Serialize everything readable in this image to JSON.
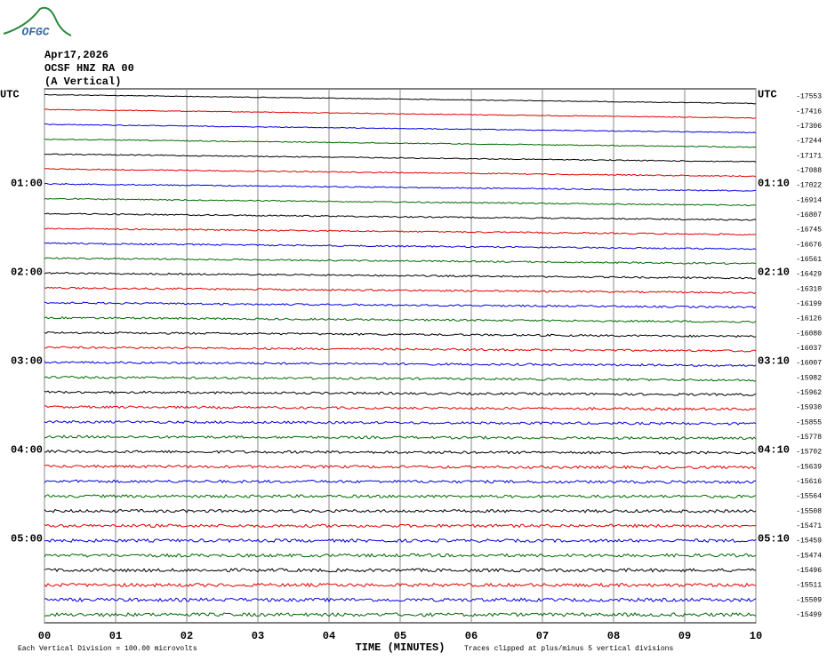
{
  "chart_data": {
    "type": "helicorder",
    "logo": "OFGC",
    "title_lines": [
      "Apr17,2026",
      "OCSF HNZ RA 00",
      "(A Vertical)"
    ],
    "colors": [
      "#000000",
      "#e00000",
      "#0000e0",
      "#006a00"
    ],
    "left_labels": [
      "UTC",
      null,
      null,
      null,
      null,
      null,
      "01:00",
      null,
      null,
      null,
      null,
      null,
      "02:00",
      null,
      null,
      null,
      null,
      null,
      "03:00",
      null,
      null,
      null,
      null,
      null,
      "04:00",
      null,
      null,
      null,
      null,
      null,
      "05:00",
      null,
      null,
      null,
      null,
      null
    ],
    "right_labels": [
      "UTC",
      null,
      null,
      null,
      null,
      null,
      "01:10",
      null,
      null,
      null,
      null,
      null,
      "02:10",
      null,
      null,
      null,
      null,
      null,
      "03:10",
      null,
      null,
      null,
      null,
      null,
      "04:10",
      null,
      null,
      null,
      null,
      null,
      "05:10",
      null,
      null,
      null,
      null,
      null
    ],
    "row_offsets": [
      -17553,
      -17416,
      -17306,
      -17244,
      -17171,
      -17088,
      -17022,
      -16914,
      -16807,
      -16745,
      -16676,
      -16561,
      -16429,
      -16310,
      -16199,
      -16126,
      -16080,
      -16037,
      -16007,
      -15982,
      -15962,
      -15930,
      -15855,
      -15778,
      -15702,
      -15639,
      -15616,
      -15564,
      -15508,
      -15471,
      -15459,
      -15474,
      -15496,
      -15511,
      -15509,
      -15499
    ],
    "xlim": [
      0,
      10
    ],
    "xticks": [
      {
        "value": 0,
        "label": "00"
      },
      {
        "value": 1,
        "label": "01"
      },
      {
        "value": 2,
        "label": "02"
      },
      {
        "value": 3,
        "label": "03"
      },
      {
        "value": 4,
        "label": "04"
      },
      {
        "value": 5,
        "label": "05"
      },
      {
        "value": 6,
        "label": "06"
      },
      {
        "value": 7,
        "label": "07"
      },
      {
        "value": 8,
        "label": "08"
      },
      {
        "value": 9,
        "label": "09"
      },
      {
        "value": 10,
        "label": "10"
      }
    ],
    "xlabel": "TIME (MINUTES)",
    "footer_left": "Each Vertical Division =  100.00 microvolts",
    "footer_right": "Traces clipped at plus/minus 5 vertical divisions"
  }
}
